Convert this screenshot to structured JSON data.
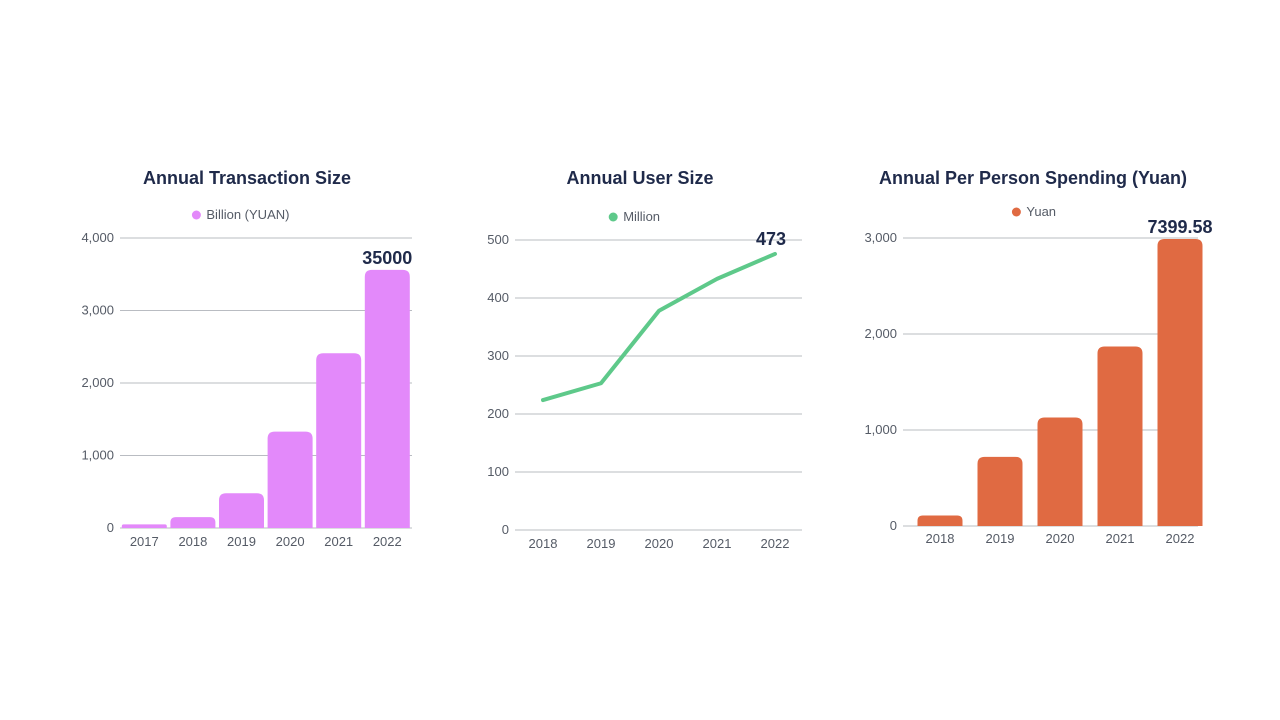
{
  "chart_data": [
    {
      "type": "bar",
      "title": "Annual Transaction Size",
      "legend": "Billion (YUAN)",
      "color": "#e389fa",
      "categories": [
        "2017",
        "2018",
        "2019",
        "2020",
        "2021",
        "2022"
      ],
      "values": [
        50,
        150,
        480,
        1330,
        2410,
        3560
      ],
      "ylim": [
        0,
        4000
      ],
      "yticks": [
        0,
        1000,
        2000,
        3000,
        4000
      ],
      "ytick_labels": [
        "0",
        "1,000",
        "2,000",
        "3,000",
        "4,000"
      ],
      "annotation": "35000",
      "grid": true
    },
    {
      "type": "line",
      "title": "Annual User Size",
      "legend": "Million",
      "color": "#5ec98a",
      "categories": [
        "2018",
        "2019",
        "2020",
        "2021",
        "2022"
      ],
      "values": [
        224,
        253,
        378,
        433,
        476
      ],
      "ylim": [
        0,
        500
      ],
      "yticks": [
        0,
        100,
        200,
        300,
        400,
        500
      ],
      "ytick_labels": [
        "0",
        "100",
        "200",
        "300",
        "400",
        "500"
      ],
      "annotation": "473",
      "grid": true
    },
    {
      "type": "bar",
      "title": "Annual Per Person Spending (Yuan)",
      "legend": "Yuan",
      "color": "#e06a42",
      "categories": [
        "2018",
        "2019",
        "2020",
        "2021",
        "2022"
      ],
      "values": [
        110,
        720,
        1130,
        1870,
        2990
      ],
      "ylim": [
        0,
        3000
      ],
      "yticks": [
        0,
        1000,
        2000,
        3000
      ],
      "ytick_labels": [
        "0",
        "1,000",
        "2,000",
        "3,000"
      ],
      "annotation": "7399.58",
      "grid": true
    }
  ]
}
